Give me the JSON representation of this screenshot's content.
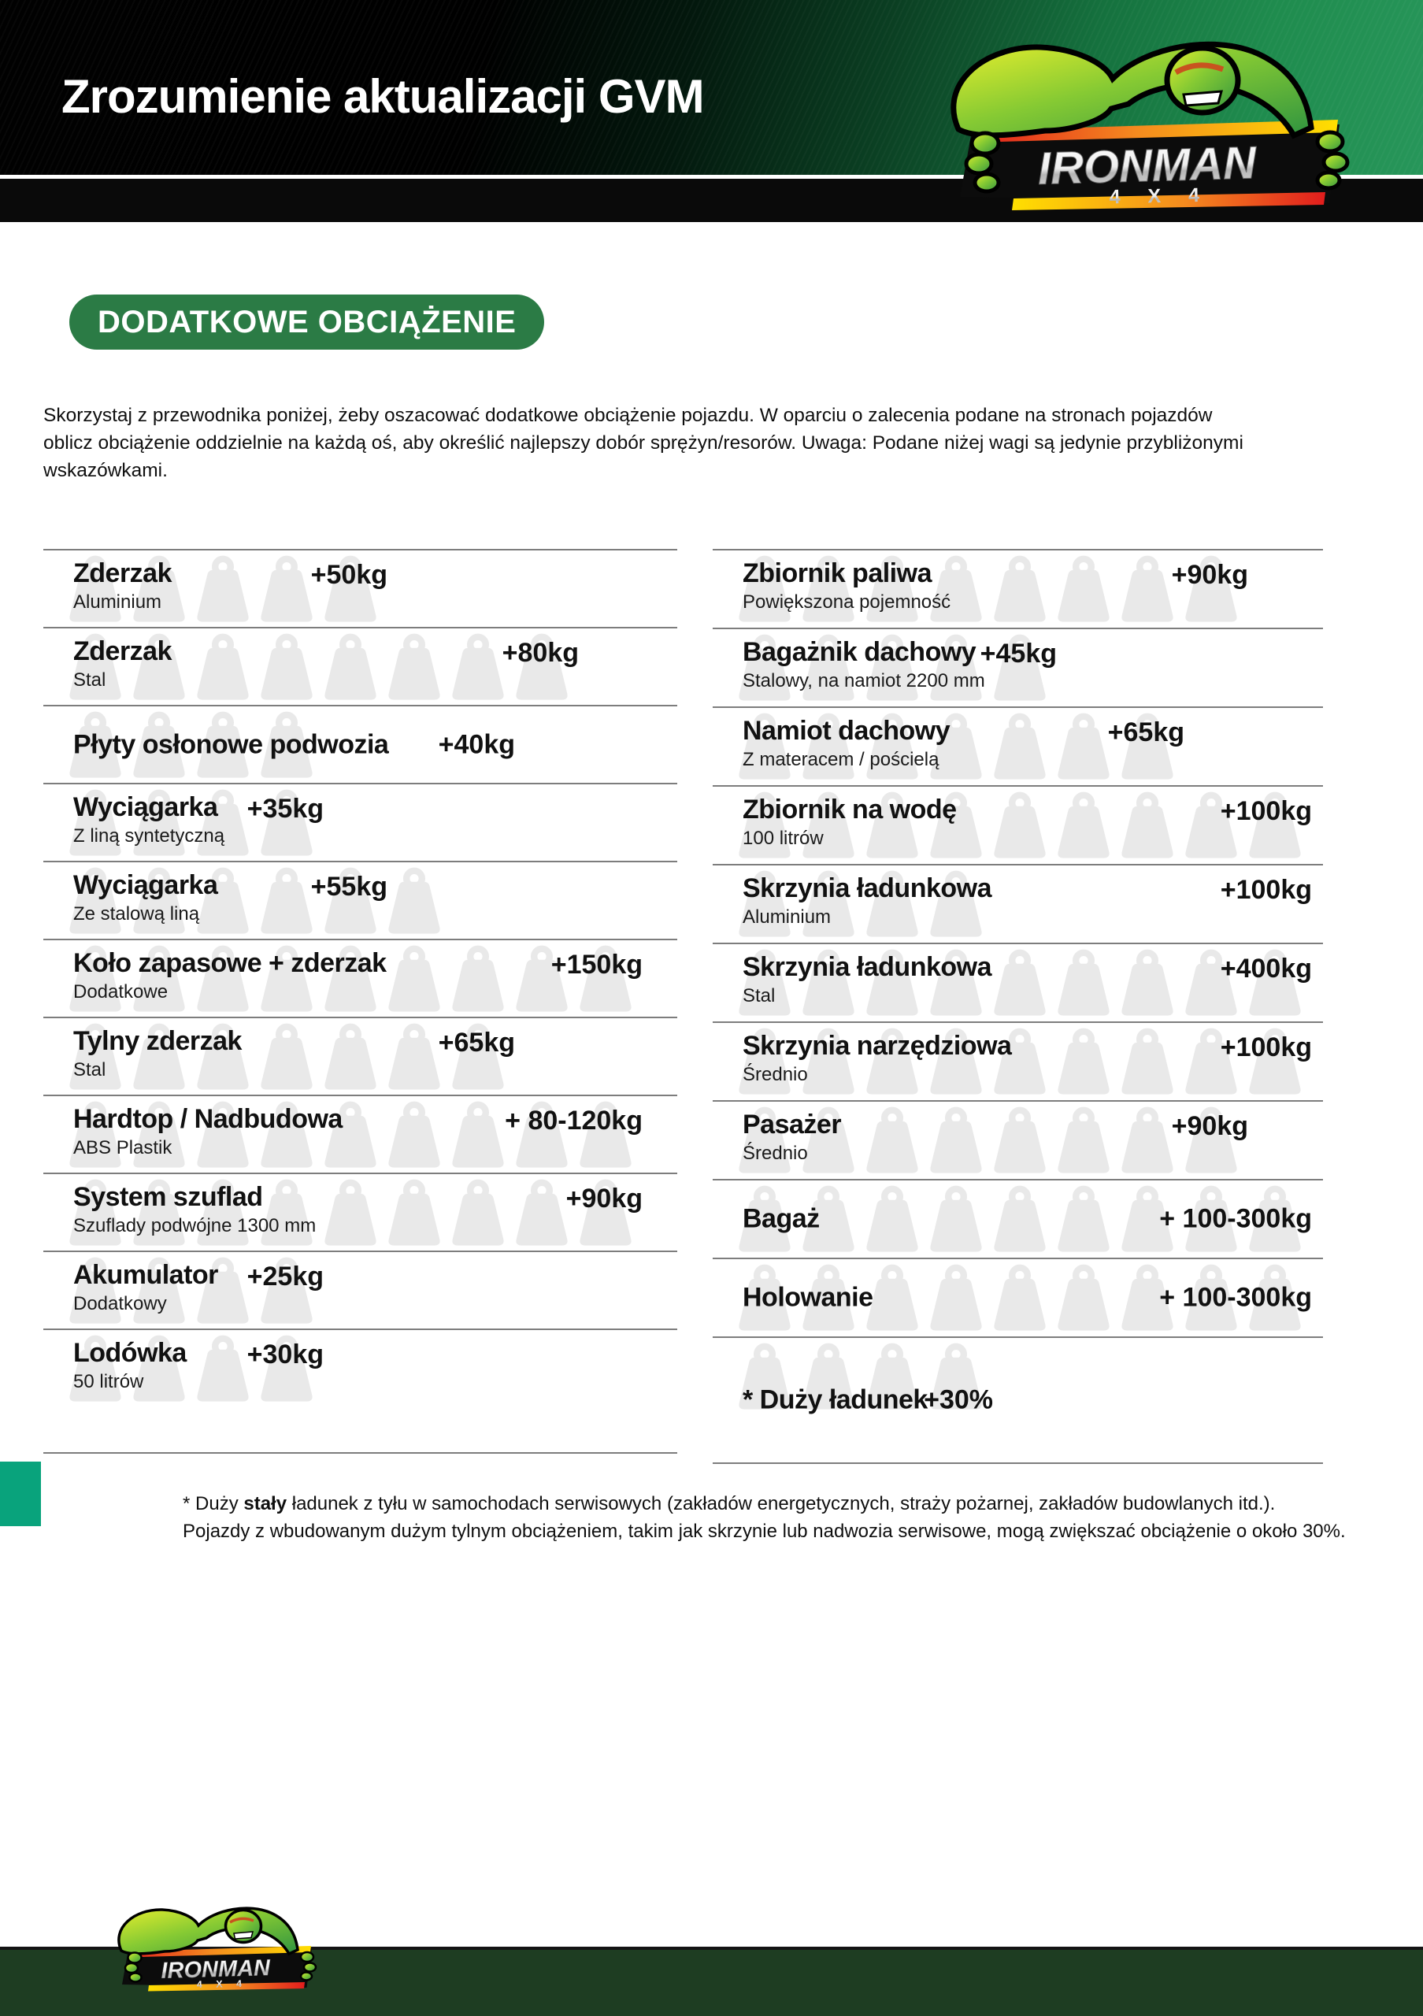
{
  "page": {
    "title": "Zrozumienie aktualizacji GVM"
  },
  "logo": {
    "brand": "IRONMAN",
    "model": "4 X 4"
  },
  "section": {
    "badge": "DODATKOWE OBCIĄŻENIE"
  },
  "intro": "Skorzystaj z przewodnika poniżej, żeby oszacować dodatkowe obciążenie pojazdu. W oparciu o zalecenia podane na stronach pojazdów oblicz obciążenie oddzielnie na każdą oś, aby określić najlepszy dobór sprężyn/resorów. Uwaga: Podane niżej wagi są jedynie przybliżonymi wskazówkami.",
  "table": {
    "left": [
      {
        "title": "Zderzak",
        "subtitle": "Aluminium",
        "value": "+50kg",
        "icons": 5,
        "value_units": 5
      },
      {
        "title": "Zderzak",
        "subtitle": "Stal",
        "value": "+80kg",
        "icons": 8,
        "value_units": 8
      },
      {
        "title": "Płyty osłonowe podwozia",
        "subtitle": "",
        "value": "+40kg",
        "icons": 4,
        "value_units": 7
      },
      {
        "title": "Wyciągarka",
        "subtitle": "Z liną syntetyczną",
        "value": "+35kg",
        "icons": 4,
        "value_units": 4
      },
      {
        "title": "Wyciągarka",
        "subtitle": "Ze stalową liną",
        "value": "+55kg",
        "icons": 6,
        "value_units": 5
      },
      {
        "title": "Koło zapasowe + zderzak",
        "subtitle": "Dodatkowe",
        "value": "+150kg",
        "icons": 9,
        "value_units": 9
      },
      {
        "title": "Tylny zderzak",
        "subtitle": "Stal",
        "value": "+65kg",
        "icons": 7,
        "value_units": 7
      },
      {
        "title": "Hardtop / Nadbudowa",
        "subtitle": "ABS Plastik",
        "value": "+ 80-120kg",
        "icons": 9,
        "value_units": 9
      },
      {
        "title": "System szuflad",
        "subtitle": "Szuflady podwójne 1300 mm",
        "value": "+90kg",
        "icons": 9,
        "value_units": 9
      },
      {
        "title": "Akumulator",
        "subtitle": "Dodatkowy",
        "value": "+25kg",
        "icons": 4,
        "value_units": 4
      },
      {
        "title": "Lodówka",
        "subtitle": "50 litrów",
        "value": "+30kg",
        "icons": 4,
        "value_units": 4
      }
    ],
    "right": [
      {
        "title": "Zbiornik paliwa",
        "subtitle": "Powiększona pojemność",
        "value": "+90kg",
        "icons": 8,
        "value_units": 8
      },
      {
        "title": "Bagażnik dachowy",
        "subtitle": "Stalowy, na namiot 2200 mm",
        "value": "+45kg",
        "icons": 5,
        "value_units": 5
      },
      {
        "title": "Namiot dachowy",
        "subtitle": "Z materacem / pościelą",
        "value": "+65kg",
        "icons": 7,
        "value_units": 7
      },
      {
        "title": "Zbiornik na wodę",
        "subtitle": "100 litrów",
        "value": "+100kg",
        "icons": 9,
        "value_units": 9
      },
      {
        "title": "Skrzynia ładunkowa",
        "subtitle": "Aluminium",
        "value": "+100kg",
        "icons": 4,
        "value_units": 9
      },
      {
        "title": "Skrzynia ładunkowa",
        "subtitle": "Stal",
        "value": "+400kg",
        "icons": 9,
        "value_units": 9
      },
      {
        "title": "Skrzynia narzędziowa",
        "subtitle": "Średnio",
        "value": "+100kg",
        "icons": 9,
        "value_units": 9
      },
      {
        "title": "Pasażer",
        "subtitle": "Średnio",
        "value": "+90kg",
        "icons": 8,
        "value_units": 8
      },
      {
        "title": "Bagaż",
        "subtitle": "",
        "value": "+ 100-300kg",
        "icons": 9,
        "value_units": 9
      },
      {
        "title": "Holowanie",
        "subtitle": "",
        "value": "+ 100-300kg",
        "icons": 9,
        "value_units": 9
      },
      {
        "title": "* Duży ładunek",
        "subtitle": "",
        "value": "+30%",
        "icons": 4,
        "value_units": 4
      }
    ]
  },
  "footnote": {
    "line1_prefix": "* Duży ",
    "line1_bold": "stały",
    "line1_suffix": " ładunek z tyłu w samochodach serwisowych (zakładów energetycznych,  straży pożarnej, zakładów budowlanych itd.).",
    "line2": "Pojazdy z wbudowanym dużym tylnym obciążeniem, takim jak skrzynie lub nadwozia serwisowe, mogą zwiększać obciążenie o około 30%."
  },
  "colors": {
    "header_green": "#1f8c4e",
    "badge_green": "#2b7b45",
    "accent_teal": "#09a37c",
    "band_green": "#1e3d22",
    "icon_gray": "#e9e9e9",
    "line_gray": "#7d7d7d"
  }
}
